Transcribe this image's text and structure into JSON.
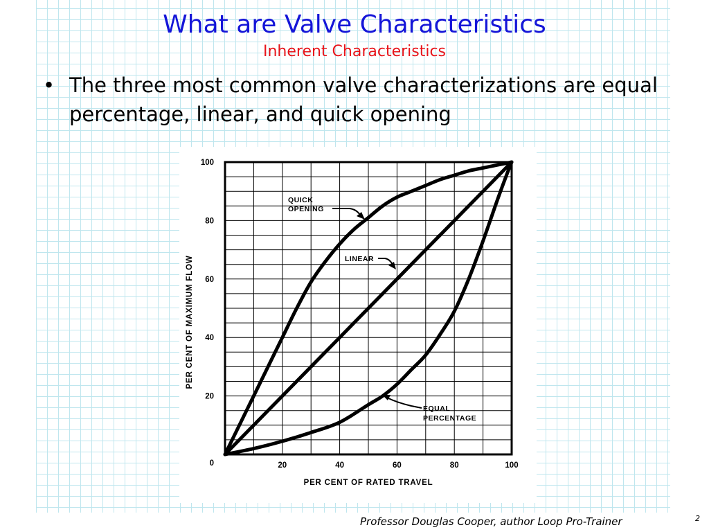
{
  "slide": {
    "title": "What are Valve Characteristics",
    "subtitle": "Inherent Characteristics",
    "bullet_marker": "•",
    "bullet": "The three most common valve characterizations are equal percentage, linear, and quick opening",
    "footer": "Professor Douglas Cooper, author Loop Pro-Trainer",
    "page_number": "2",
    "colors": {
      "title": "#1515d8",
      "subtitle": "#e8141a",
      "background_grid": "#bfe6ee"
    }
  },
  "chart_data": {
    "type": "line",
    "xlabel": "PER CENT OF RATED TRAVEL",
    "ylabel": "PER CENT OF MAXIMUM FLOW",
    "xlim": [
      0,
      100
    ],
    "ylim": [
      0,
      100
    ],
    "x_ticks": [
      "20",
      "40",
      "60",
      "80",
      "100"
    ],
    "y_ticks": [
      "0",
      "20",
      "40",
      "60",
      "80",
      "100"
    ],
    "grid": true,
    "series": [
      {
        "name": "QUICK OPENING",
        "x": [
          0,
          5,
          10,
          15,
          20,
          25,
          30,
          35,
          40,
          45,
          50,
          55,
          60,
          65,
          70,
          75,
          80,
          85,
          90,
          95,
          100
        ],
        "y": [
          0,
          10,
          20,
          30,
          40,
          50,
          59,
          66,
          72,
          77,
          81,
          85,
          88,
          90,
          92,
          94,
          95.5,
          97,
          98,
          99,
          100
        ]
      },
      {
        "name": "LINEAR",
        "x": [
          0,
          100
        ],
        "y": [
          0,
          100
        ]
      },
      {
        "name": "EQUAL PERCENTAGE",
        "x": [
          0,
          10,
          20,
          30,
          40,
          50,
          55,
          60,
          65,
          70,
          75,
          80,
          85,
          90,
          95,
          98,
          100
        ],
        "y": [
          0,
          2,
          4.5,
          7.5,
          11,
          17,
          20,
          24,
          29,
          34,
          41,
          49,
          60,
          73,
          87,
          95,
          100
        ]
      }
    ]
  }
}
